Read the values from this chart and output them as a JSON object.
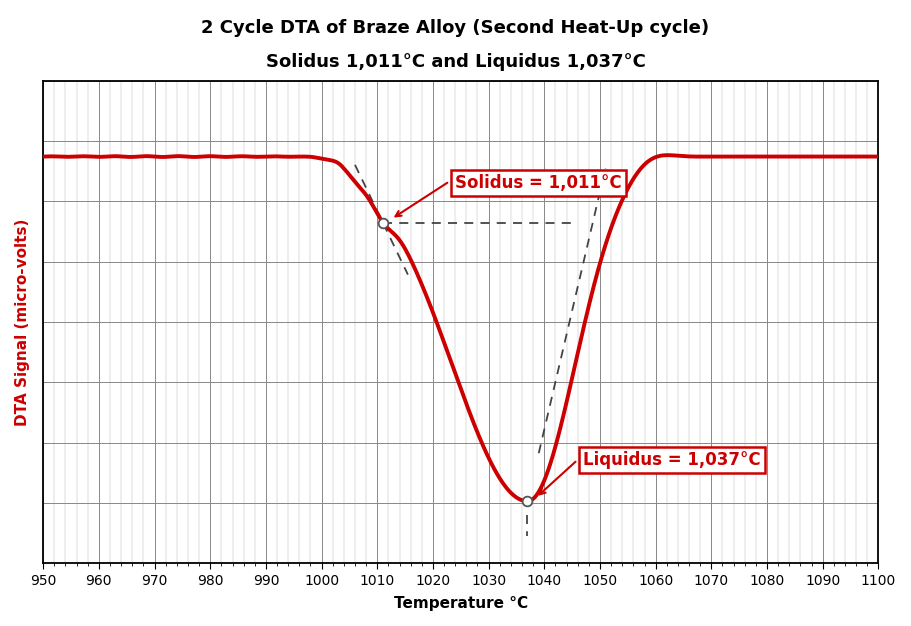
{
  "title_line1": "2 Cycle DTA of Braze Alloy (Second Heat-Up cycle)",
  "title_line2": "Solidus 1,011°C and Liquidus 1,037°C",
  "xlabel": "Temperature °C",
  "ylabel": "DTA Signal (micro-volts)",
  "xlim": [
    950,
    1100
  ],
  "x_ticks": [
    950,
    960,
    970,
    980,
    990,
    1000,
    1010,
    1020,
    1030,
    1040,
    1050,
    1060,
    1070,
    1080,
    1090,
    1100
  ],
  "solidus_temp": 1011,
  "liquidus_temp": 1037,
  "curve_color": "#cc0000",
  "dashed_color": "#444444",
  "annotation_color": "#cc0000",
  "background_color": "#ffffff",
  "grid_color_major": "#888888",
  "grid_color_minor": "#bbbbbb",
  "title_fontsize": 13,
  "label_fontsize": 11,
  "tick_fontsize": 10,
  "annot_fontsize": 12,
  "solidus_label": "Solidus = 1,011°C",
  "liquidus_label": "Liquidus = 1,037°C"
}
